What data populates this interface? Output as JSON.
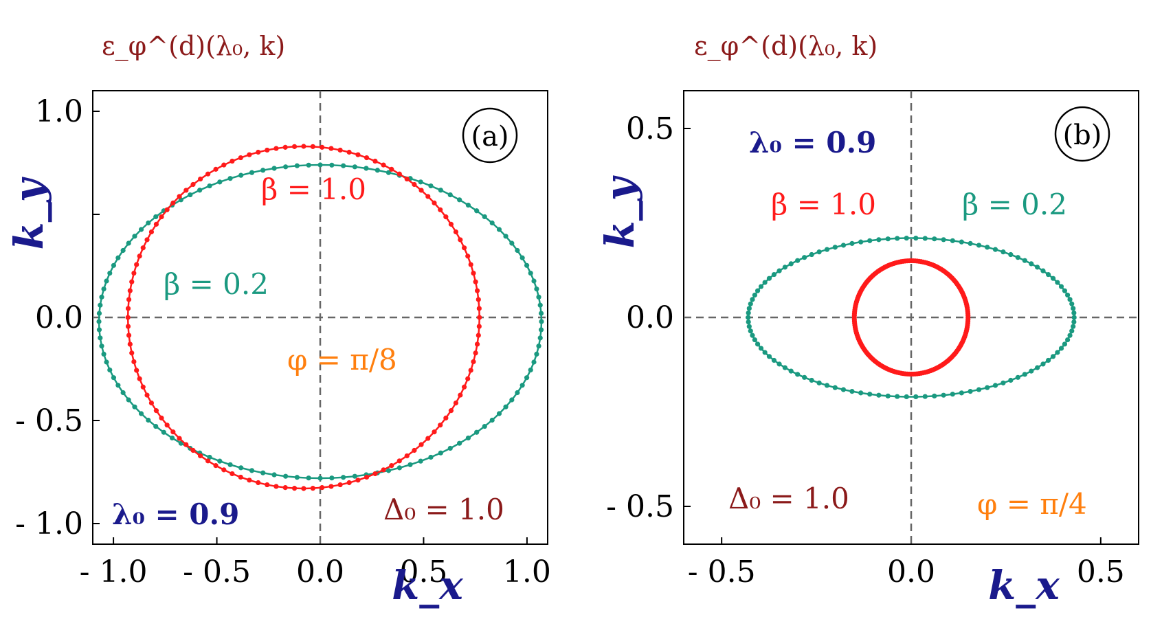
{
  "colors": {
    "red": "#ff1a1a",
    "teal": "#1a9980",
    "navy": "#1a1a8c",
    "orange": "#ff7f0e",
    "darkred": "#8b1a1a"
  },
  "chart_data": [
    {
      "type": "scatter",
      "panel_label": "(a)",
      "title": "ε_φ^(d)(λ₀, k)",
      "xlabel": "k_x",
      "ylabel": "k_y",
      "xlim": [
        -1.1,
        1.1
      ],
      "ylim": [
        -1.1,
        1.1
      ],
      "xticks": [
        -1.0,
        -0.5,
        0.0,
        0.5,
        1.0
      ],
      "xtick_labels": [
        "- 1.0",
        "- 0.5",
        "0.0",
        "0.5",
        "1.0"
      ],
      "yticks": [
        1.0,
        0.5,
        0.0,
        -0.5,
        -1.0
      ],
      "ytick_labels": [
        "1.0",
        "",
        "0.0",
        "- 0.5",
        "- 1.0"
      ],
      "grid": false,
      "annotations": {
        "beta1": "β = 1.0",
        "beta02": "β = 0.2",
        "phi": "φ = π/8",
        "lambda": "λ₀ = 0.9",
        "delta": "Δ₀ = 1.0"
      },
      "series": [
        {
          "color": "teal",
          "cx": 0.0,
          "cy": -0.02,
          "rx": 1.07,
          "ry": 0.76,
          "n": 120
        },
        {
          "color": "red",
          "cx": -0.08,
          "cy": 0.0,
          "rx": 0.85,
          "ry": 0.83,
          "n": 120
        }
      ]
    },
    {
      "type": "scatter",
      "panel_label": "(b)",
      "title": "ε_φ^(d)(λ₀, k)",
      "xlabel": "k_x",
      "ylabel": "k_y",
      "xlim": [
        -0.6,
        0.6
      ],
      "ylim": [
        -0.6,
        0.6
      ],
      "xticks": [
        -0.5,
        0.0,
        0.5
      ],
      "xtick_labels": [
        "- 0.5",
        "0.0",
        "0.5"
      ],
      "yticks": [
        0.5,
        0.0,
        -0.5
      ],
      "ytick_labels": [
        "0.5",
        "0.0",
        "- 0.5"
      ],
      "grid": false,
      "annotations": {
        "lambda": "λ₀ = 0.9",
        "beta1": "β = 1.0",
        "beta02": "β = 0.2",
        "delta": "Δ₀ = 1.0",
        "phi": "φ = π/4"
      },
      "series": [
        {
          "color": "teal",
          "cx": 0.0,
          "cy": 0.0,
          "rx": 0.43,
          "ry": 0.21,
          "n": 110
        },
        {
          "color": "red",
          "cx": 0.0,
          "cy": 0.0,
          "rx": 0.15,
          "ry": 0.15,
          "n": 180
        }
      ]
    }
  ]
}
